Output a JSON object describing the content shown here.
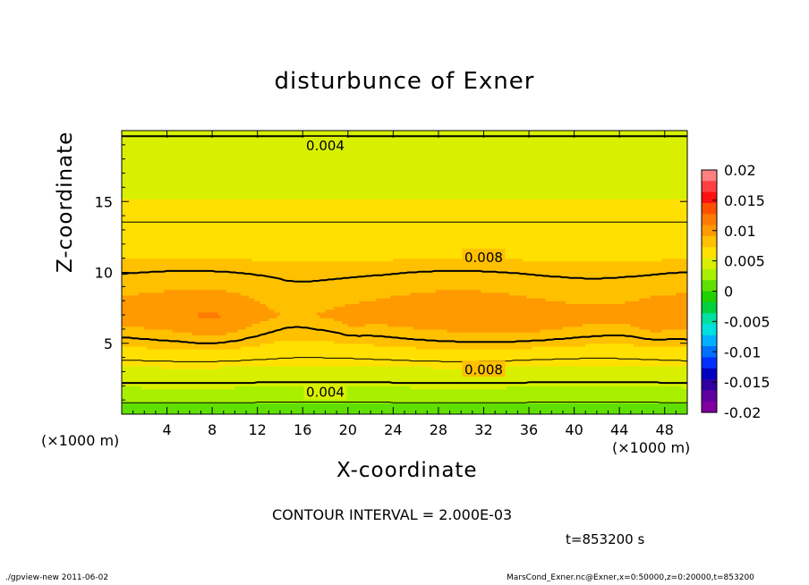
{
  "title": "disturbunce of Exner",
  "xlabel": "X-coordinate",
  "ylabel": "Z-coordinate",
  "x_unit_left": "(×1000 m)",
  "x_unit_right": "(×1000 m)",
  "contour_interval_text": "CONTOUR INTERVAL = 2.000E-03",
  "time_text": "t=853200 s",
  "footer_left": "./gpview-new   2011-06-02",
  "footer_right": "MarsCond_Exner.nc@Exner,x=0:50000,z=0:20000,t=853200",
  "colors": {
    "frame": "#000000",
    "contour": "#000000"
  },
  "chart_data": {
    "type": "contour",
    "title": "disturbunce of Exner",
    "xlabel": "X-coordinate",
    "ylabel": "Z-coordinate",
    "xlim": [
      0,
      50
    ],
    "ylim": [
      0,
      20
    ],
    "x_ticks": [
      4,
      8,
      12,
      16,
      20,
      24,
      28,
      32,
      36,
      40,
      44,
      48
    ],
    "y_ticks": [
      5,
      10,
      15
    ],
    "contour_interval": 0.002,
    "contour_labels": [
      {
        "text": "0.004",
        "x": 18,
        "z": 19.0
      },
      {
        "text": "0.008",
        "x": 32,
        "z": 11.1
      },
      {
        "text": "0.008",
        "x": 32,
        "z": 3.2
      },
      {
        "text": "0.004",
        "x": 18,
        "z": 1.6
      }
    ],
    "colorbar": {
      "min": -0.02,
      "max": 0.02,
      "tick_labels": [
        "0.02",
        "0.015",
        "0.01",
        "0.005",
        "0",
        "-0.005",
        "-0.01",
        "-0.015",
        "-0.02"
      ],
      "tick_values": [
        0.02,
        0.015,
        0.01,
        0.005,
        0,
        -0.005,
        -0.01,
        -0.015,
        -0.02
      ],
      "band_colors": [
        "#ff8080",
        "#ff4040",
        "#ff1010",
        "#ff5000",
        "#ff7a00",
        "#ff9a00",
        "#ffc000",
        "#ffe000",
        "#d8f000",
        "#a8f000",
        "#60e000",
        "#20d000",
        "#00d040",
        "#00e0a0",
        "#00e0e0",
        "#00b0ff",
        "#0070ff",
        "#0030ff",
        "#0000c0",
        "#3000a0",
        "#6000a0",
        "#8000a0"
      ]
    }
  }
}
